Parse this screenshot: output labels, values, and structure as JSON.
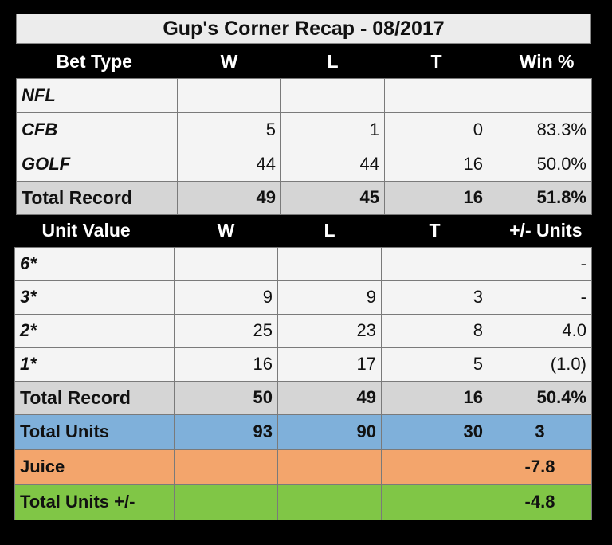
{
  "title": "Gup's Corner Recap - 08/2017",
  "bet_table": {
    "headers": [
      "Bet Type",
      "W",
      "L",
      "T",
      "Win %"
    ],
    "rows": [
      {
        "label": "NFL",
        "w": "",
        "l": "",
        "t": "",
        "pct": ""
      },
      {
        "label": "CFB",
        "w": "5",
        "l": "1",
        "t": "0",
        "pct": "83.3%"
      },
      {
        "label": "GOLF",
        "w": "44",
        "l": "44",
        "t": "16",
        "pct": "50.0%"
      }
    ],
    "total": {
      "label": "Total Record",
      "w": "49",
      "l": "45",
      "t": "16",
      "pct": "51.8%"
    }
  },
  "unit_table": {
    "headers": [
      "Unit Value",
      "W",
      "L",
      "T",
      "+/- Units"
    ],
    "rows": [
      {
        "label": "6*",
        "w": "",
        "l": "",
        "t": "",
        "units": "-"
      },
      {
        "label": "3*",
        "w": "9",
        "l": "9",
        "t": "3",
        "units": "-"
      },
      {
        "label": "2*",
        "w": "25",
        "l": "23",
        "t": "8",
        "units": "4.0"
      },
      {
        "label": "1*",
        "w": "16",
        "l": "17",
        "t": "5",
        "units": "(1.0)"
      }
    ],
    "total_record": {
      "label": "Total Record",
      "w": "50",
      "l": "49",
      "t": "16",
      "units": "50.4%"
    },
    "total_units": {
      "label": "Total Units",
      "w": "93",
      "l": "90",
      "t": "30",
      "units": "3"
    },
    "juice": {
      "label": "Juice",
      "units": "-7.8"
    },
    "net": {
      "label": "Total Units +/-",
      "units": "-4.8"
    }
  },
  "colors": {
    "total_row": "#d5d5d5",
    "total_units_row": "#7fb0da",
    "juice_row": "#f3a56c",
    "net_row": "#80c646"
  }
}
